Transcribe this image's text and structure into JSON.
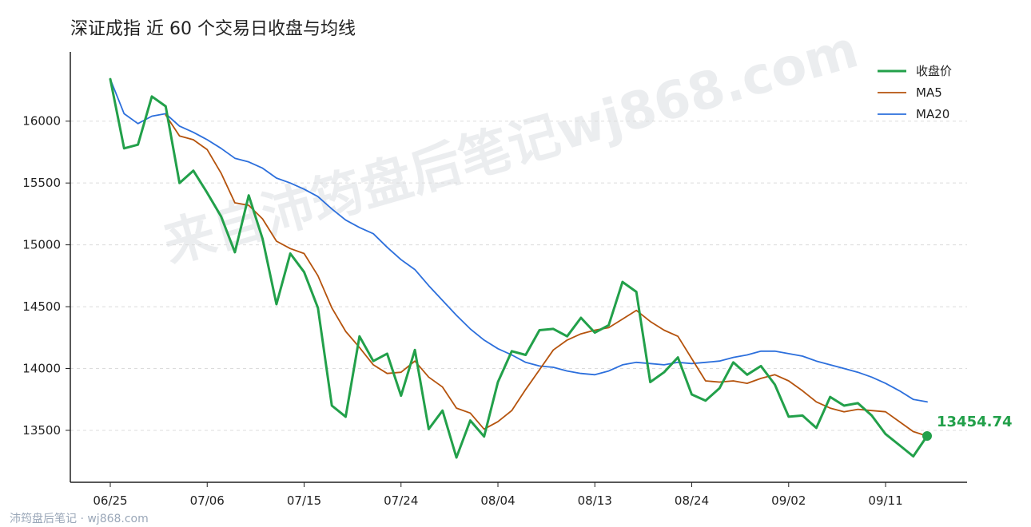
{
  "chart_data": {
    "type": "line",
    "title": "深证成指 近 60 个交易日收盘与均线",
    "xlabel": "",
    "ylabel": "",
    "ylim": [
      13080,
      16560
    ],
    "yticks": [
      13500,
      14000,
      14500,
      15000,
      15500,
      16000
    ],
    "grid": "horizontal dashed",
    "legend_position": "top-right",
    "x_tick_labels": [
      "06/25",
      "07/06",
      "07/15",
      "07/24",
      "08/04",
      "08/13",
      "08/24",
      "09/02",
      "09/11"
    ],
    "x_tick_indices": [
      0,
      7,
      14,
      21,
      28,
      35,
      42,
      49,
      56
    ],
    "n_points": 60,
    "series": [
      {
        "name": "收盘价",
        "color": "#22a04a",
        "values": [
          16340,
          15780,
          15810,
          16200,
          16120,
          15500,
          15600,
          15420,
          15230,
          14940,
          15400,
          15050,
          14520,
          14930,
          14780,
          14490,
          13700,
          13610,
          14260,
          14060,
          14120,
          13780,
          14150,
          13510,
          13660,
          13280,
          13580,
          13450,
          13890,
          14140,
          14110,
          14310,
          14320,
          14260,
          14410,
          14290,
          14350,
          14700,
          14620,
          13890,
          13970,
          14090,
          13790,
          13740,
          13840,
          14050,
          13950,
          14020,
          13870,
          13610,
          13620,
          13520,
          13770,
          13700,
          13720,
          13620,
          13470,
          13380,
          13290,
          13454.74
        ]
      },
      {
        "name": "MA5",
        "color": "#b5530d",
        "values": [
          null,
          null,
          null,
          null,
          16050,
          15880,
          15850,
          15770,
          15580,
          15340,
          15320,
          15210,
          15030,
          14970,
          14930,
          14750,
          14490,
          14300,
          14170,
          14030,
          13960,
          13970,
          14060,
          13930,
          13850,
          13680,
          13640,
          13510,
          13570,
          13660,
          13830,
          13990,
          14150,
          14230,
          14280,
          14310,
          14330,
          14400,
          14470,
          14380,
          14310,
          14260,
          14080,
          13900,
          13890,
          13900,
          13880,
          13920,
          13950,
          13900,
          13820,
          13730,
          13680,
          13650,
          13670,
          13660,
          13650,
          13570,
          13490,
          13454
        ]
      },
      {
        "name": "MA20",
        "color": "#2c6fdc",
        "values": [
          16340,
          16060,
          15980,
          16040,
          16060,
          15960,
          15910,
          15850,
          15780,
          15700,
          15670,
          15620,
          15540,
          15500,
          15450,
          15390,
          15290,
          15200,
          15140,
          15090,
          14980,
          14880,
          14800,
          14670,
          14550,
          14430,
          14320,
          14230,
          14160,
          14110,
          14050,
          14020,
          14010,
          13980,
          13960,
          13950,
          13980,
          14030,
          14050,
          14040,
          14030,
          14050,
          14040,
          14050,
          14060,
          14090,
          14110,
          14140,
          14140,
          14120,
          14100,
          14060,
          14030,
          14000,
          13970,
          13930,
          13880,
          13820,
          13750,
          13730
        ]
      }
    ],
    "annotation": {
      "text": "13454.74",
      "color": "#22a04a"
    },
    "watermark": "来自沛筠盘后笔记wj868.com"
  },
  "footer": {
    "text": "沛筠盘后笔记 · wj868.com"
  }
}
